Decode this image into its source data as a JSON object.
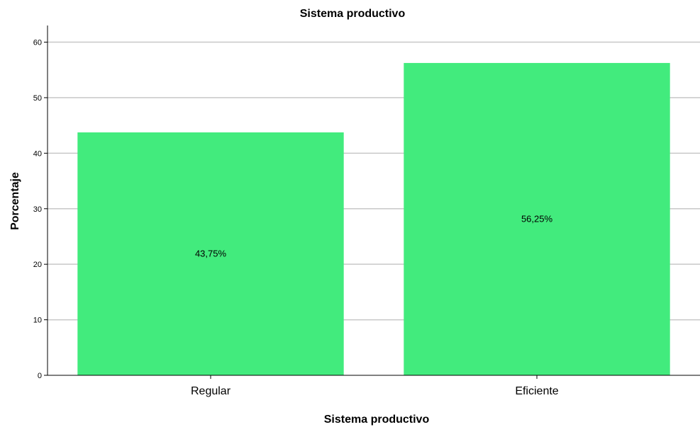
{
  "chart_data": {
    "type": "bar",
    "title": "Sistema productivo",
    "xlabel": "Sistema productivo",
    "ylabel": "Porcentaje",
    "categories": [
      "Regular",
      "Eficiente"
    ],
    "values": [
      43.75,
      56.25
    ],
    "data_labels": [
      "43,75%",
      "56,25%"
    ],
    "ylim": [
      0,
      63
    ],
    "yticks": [
      0,
      10,
      20,
      30,
      40,
      50,
      60
    ],
    "grid": true,
    "legend": "none",
    "bar_color": "#42EB7D",
    "grid_color": "#C8C8C8"
  }
}
